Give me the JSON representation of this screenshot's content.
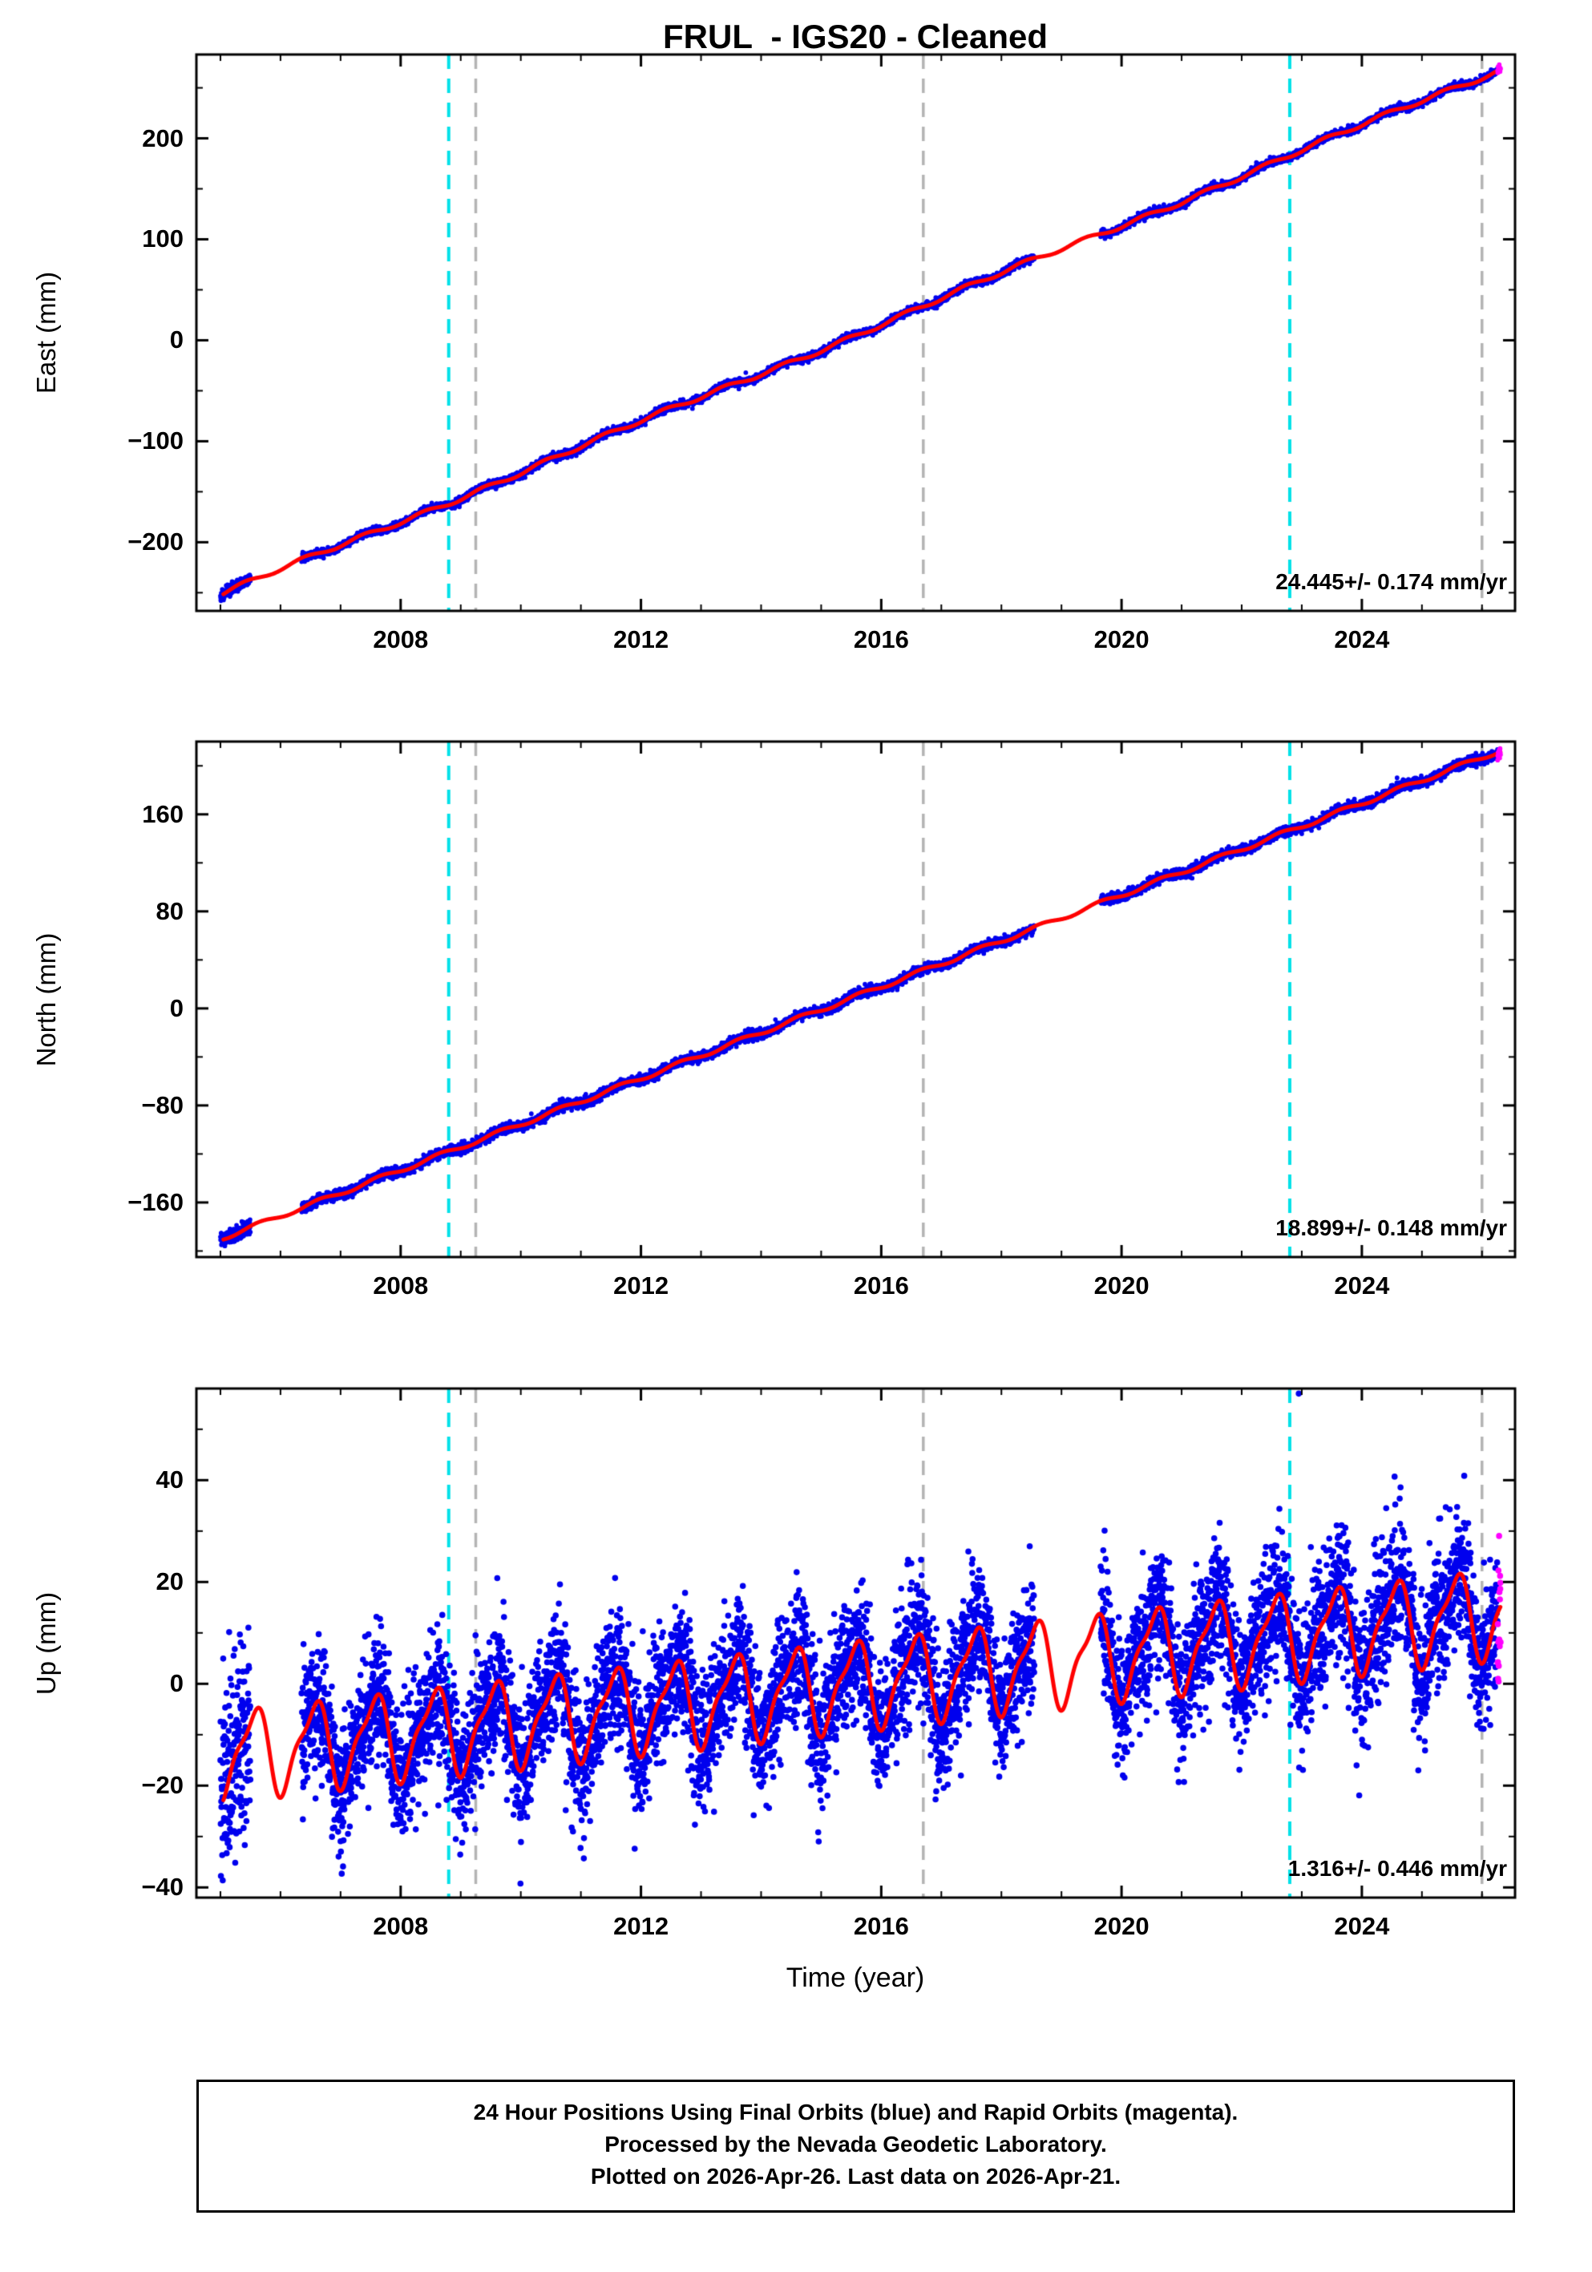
{
  "title": "FRUL  - IGS20 - Cleaned",
  "xlabel": "Time (year)",
  "footer": {
    "line1": "24 Hour Positions Using Final Orbits (blue) and Rapid Orbits (magenta).",
    "line2": "Processed by the Nevada Geodetic Laboratory.",
    "line3": "Plotted on 2026-Apr-26. Last data on 2026-Apr-21."
  },
  "colors": {
    "final_orbits_blue": "#0000ee",
    "rapid_orbits_magenta": "#ff00ff",
    "model_red": "#ff0000",
    "event_line_cyan": "#00e1e8",
    "event_line_gray": "#b4b4b4",
    "frame_black": "#000000"
  },
  "event_lines": {
    "cyan": [
      2008.8,
      2022.8
    ],
    "gray": [
      2009.25,
      2016.7,
      2026.0
    ]
  },
  "chart_data": [
    {
      "type": "scatter",
      "name": "East",
      "ylabel": "East (mm)",
      "rate_label": "24.445+/- 0.174 mm/yr",
      "xlim": [
        2004.6,
        2026.55
      ],
      "ylim": [
        -268,
        283
      ],
      "xticks": [
        2008,
        2012,
        2016,
        2020,
        2024
      ],
      "yticks": [
        200,
        100,
        0,
        -100,
        -200
      ],
      "ytick_labels": [
        "200",
        "100",
        "0",
        "−100",
        "−200"
      ],
      "y_minor_step": 50,
      "trend": {
        "ref_year": 2005,
        "intercept": -252.5,
        "rate_mm_per_yr": 24.445
      },
      "seasonal": [
        {
          "amp": 2.2,
          "period": 1,
          "phase": 0.15
        },
        {
          "amp": 2.0,
          "period": 6,
          "phase": 0.5
        }
      ],
      "noise": {
        "sigma": 1.8,
        "early_sigma": 3,
        "early_until": 2005.5
      },
      "series_spans": {
        "final": [
          2005.0,
          2026.26
        ],
        "rapid": [
          2026.26,
          2026.31
        ],
        "model": [
          2005.05,
          2026.31
        ],
        "gaps": [
          [
            2005.5,
            2006.35
          ],
          [
            2018.55,
            2019.65
          ]
        ]
      },
      "outliers": []
    },
    {
      "type": "scatter",
      "name": "North",
      "ylabel": "North (mm)",
      "rate_label": "18.899+/- 0.148 mm/yr",
      "xlim": [
        2004.6,
        2026.55
      ],
      "ylim": [
        -205,
        220
      ],
      "xticks": [
        2008,
        2012,
        2016,
        2020,
        2024
      ],
      "yticks": [
        160,
        80,
        0,
        -80,
        -160
      ],
      "ytick_labels": [
        "160",
        "80",
        "0",
        "−80",
        "−160"
      ],
      "y_minor_step": 40,
      "trend": {
        "ref_year": 2005,
        "intercept": -190,
        "rate_mm_per_yr": 18.899
      },
      "seasonal": [
        {
          "amp": 1.8,
          "period": 1,
          "phase": 0.4
        }
      ],
      "noise": {
        "sigma": 2.0,
        "early_sigma": 3,
        "early_until": 2005.5
      },
      "series_spans": {
        "final": [
          2005.0,
          2026.26
        ],
        "rapid": [
          2026.26,
          2026.31
        ],
        "model": [
          2005.05,
          2026.31
        ],
        "gaps": [
          [
            2005.5,
            2006.35
          ],
          [
            2018.55,
            2019.65
          ]
        ]
      },
      "outliers": []
    },
    {
      "type": "scatter",
      "name": "Up",
      "ylabel": "Up (mm)",
      "rate_label": "1.316+/- 0.446 mm/yr",
      "xlim": [
        2004.6,
        2026.55
      ],
      "ylim": [
        -42,
        58
      ],
      "xticks": [
        2008,
        2012,
        2016,
        2020,
        2024
      ],
      "yticks": [
        40,
        20,
        0,
        -20,
        -40
      ],
      "ytick_labels": [
        "40",
        "20",
        "0",
        "−20",
        "−40"
      ],
      "y_minor_step": 10,
      "trend": {
        "ref_year": 2005,
        "intercept": -14,
        "rate_mm_per_yr": 1.316
      },
      "seasonal": [
        {
          "amp": 8.0,
          "period": 1,
          "phase": 0.3
        },
        {
          "amp": 2.5,
          "period": 0.5,
          "phase": 0.08
        }
      ],
      "noise": {
        "sigma": 6.5,
        "early_sigma": 10,
        "early_until": 2005.55
      },
      "series_spans": {
        "final": [
          2005.0,
          2026.26
        ],
        "rapid": [
          2026.26,
          2026.31
        ],
        "model": [
          2005.05,
          2026.31
        ],
        "gaps": [
          [
            2005.5,
            2006.35
          ],
          [
            2018.55,
            2019.65
          ]
        ]
      },
      "outliers": [
        {
          "t": 2022.95,
          "v": 57
        },
        {
          "t": 2017.45,
          "v": 26
        },
        {
          "t": 2017.52,
          "v": 24.5
        }
      ]
    }
  ]
}
